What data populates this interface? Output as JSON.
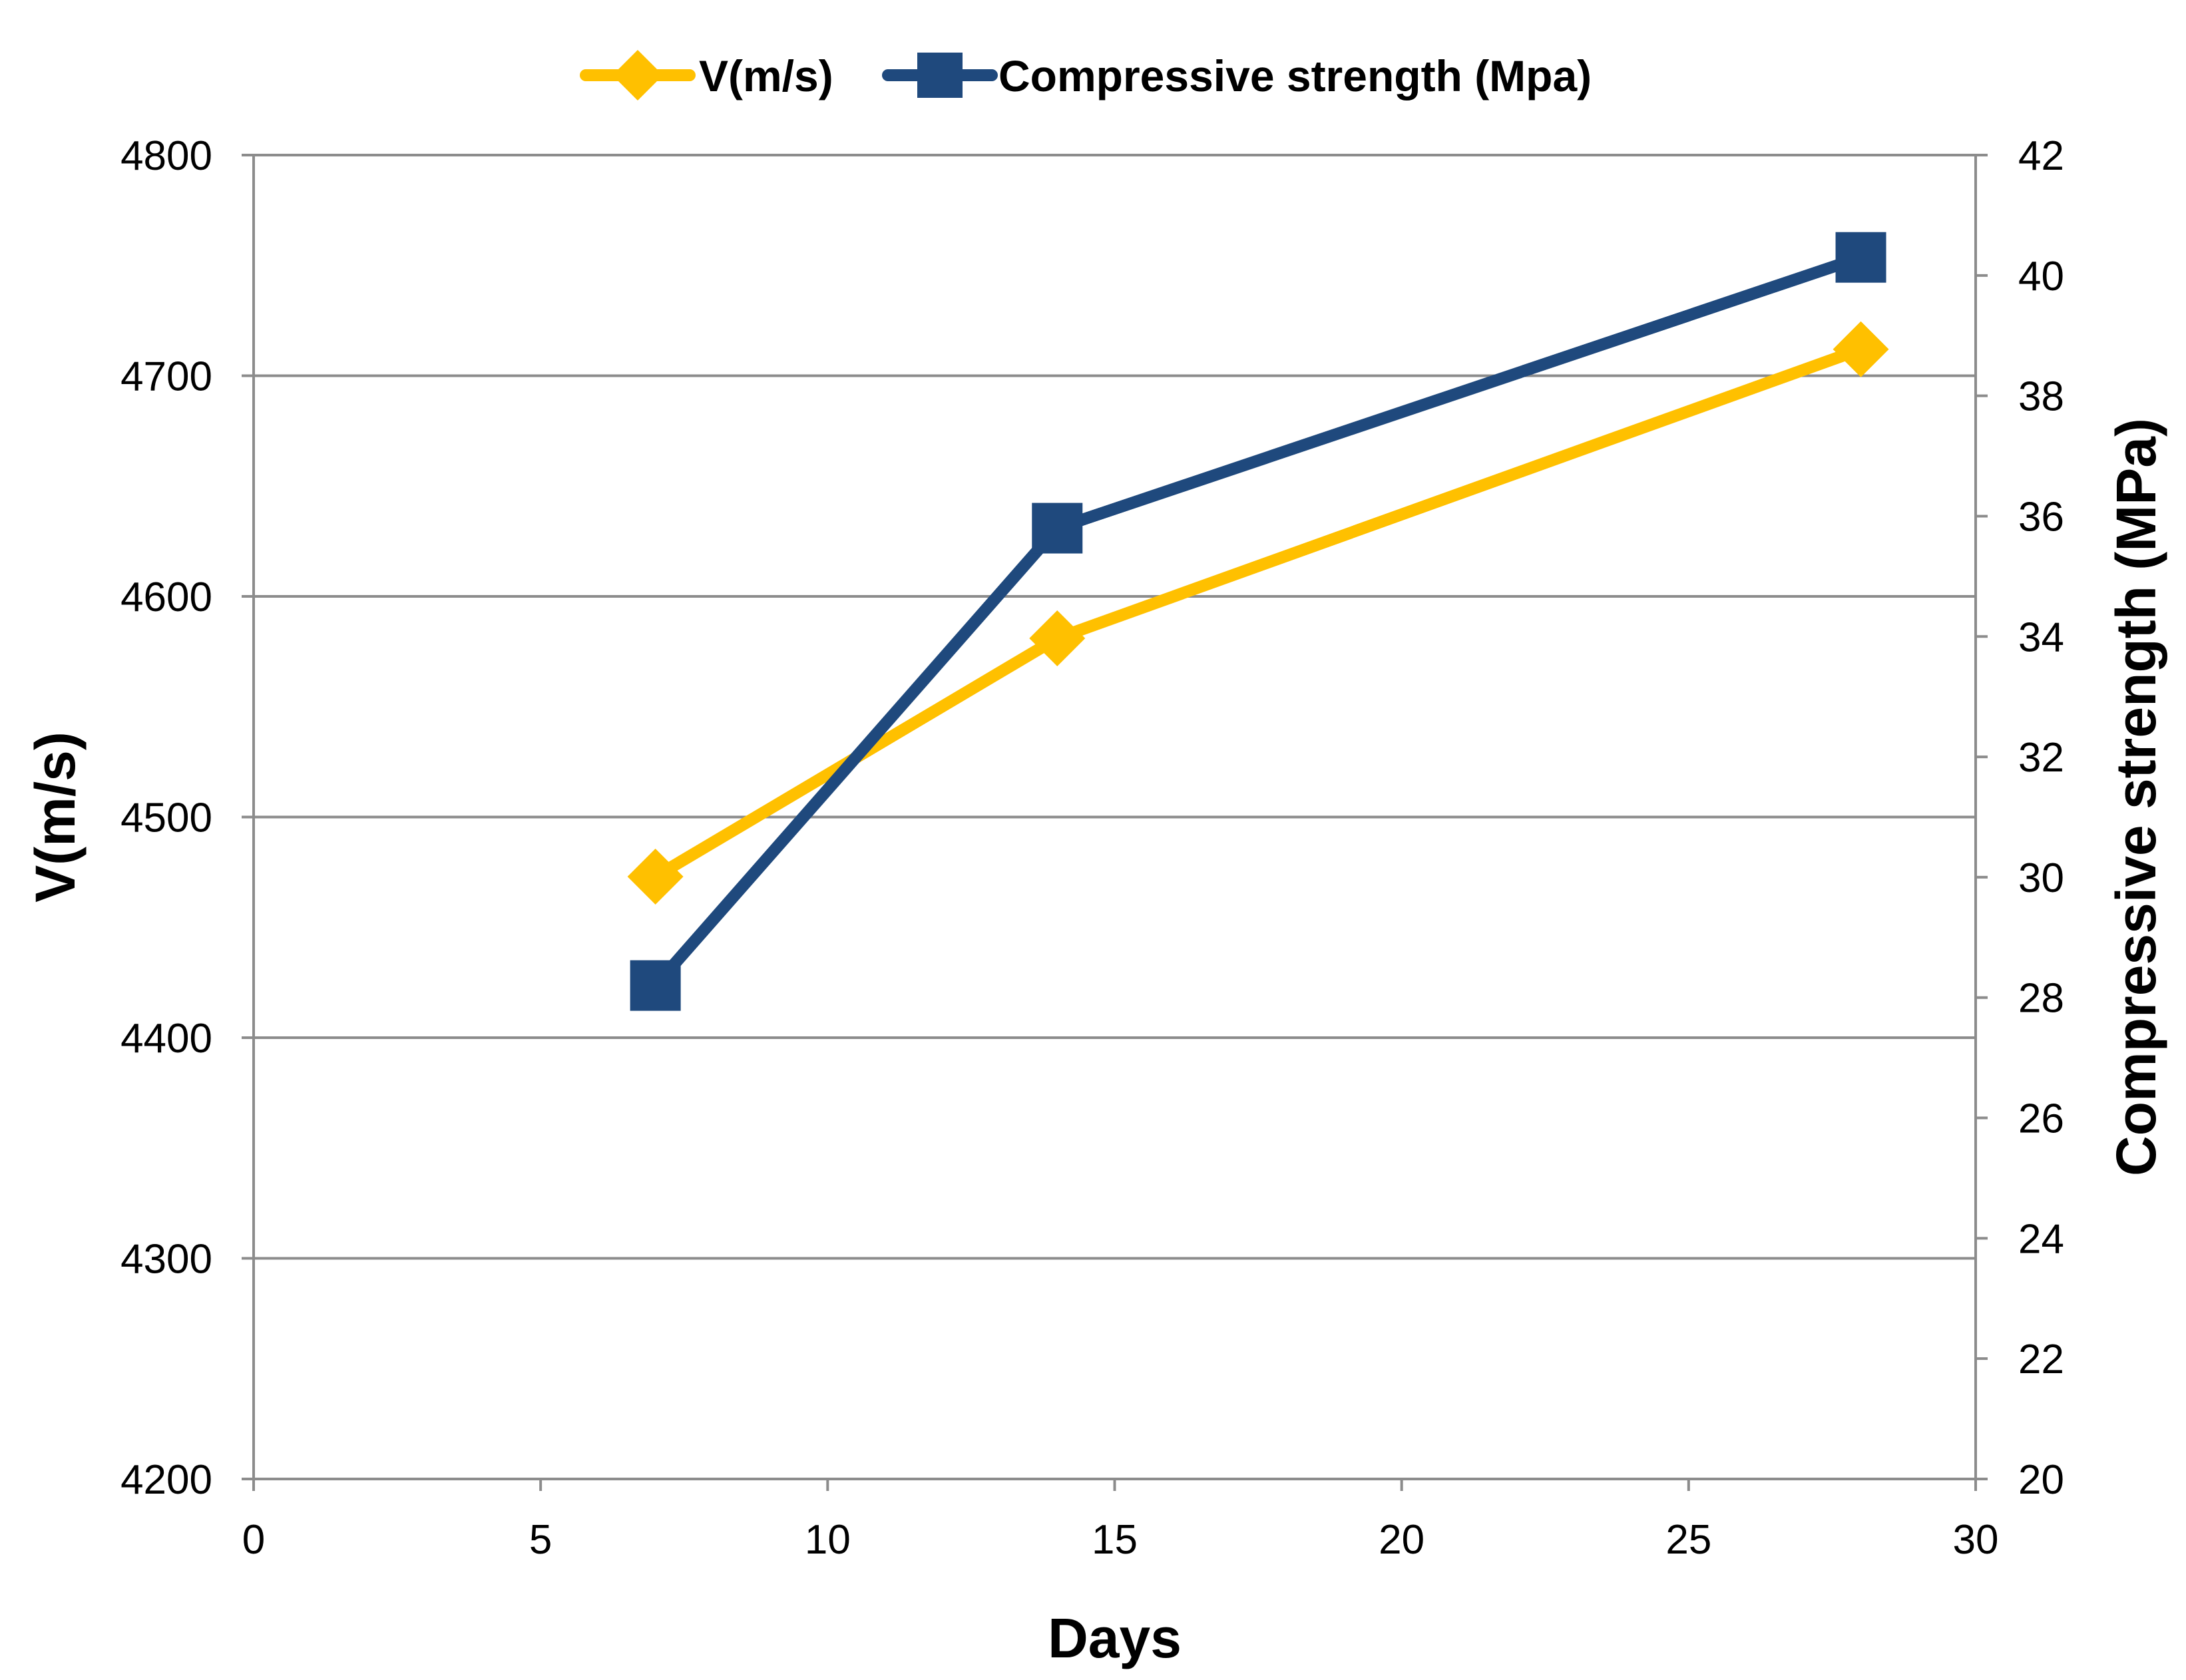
{
  "chart_data": {
    "type": "line",
    "dual_axis": true,
    "xlabel": "Days",
    "ylabel_left": "V(m/s)",
    "ylabel_right": "Compressive strength (MPa)",
    "xlim": [
      0,
      30
    ],
    "x_ticks": [
      "0",
      "5",
      "10",
      "15",
      "20",
      "25",
      "30"
    ],
    "ylim_left": [
      4200,
      4800
    ],
    "y_ticks_left": [
      "4200",
      "4300",
      "4400",
      "4500",
      "4600",
      "4700",
      "4800"
    ],
    "ylim_right": [
      20,
      42
    ],
    "y_ticks_right": [
      "20",
      "22",
      "24",
      "26",
      "28",
      "30",
      "32",
      "34",
      "36",
      "38",
      "40",
      "42"
    ],
    "grid": "horizontal",
    "legend_position": "top-center",
    "series": [
      {
        "name": "V(m/s)",
        "axis": "left",
        "marker": "diamond",
        "color": "#FFC000",
        "x": [
          7,
          14,
          28
        ],
        "y": [
          4473,
          4581,
          4712
        ]
      },
      {
        "name": "Compressive strength (Mpa)",
        "axis": "right",
        "marker": "square",
        "color": "#1F497D",
        "x": [
          7,
          14,
          28
        ],
        "y": [
          28.2,
          35.8,
          40.3
        ]
      }
    ]
  }
}
